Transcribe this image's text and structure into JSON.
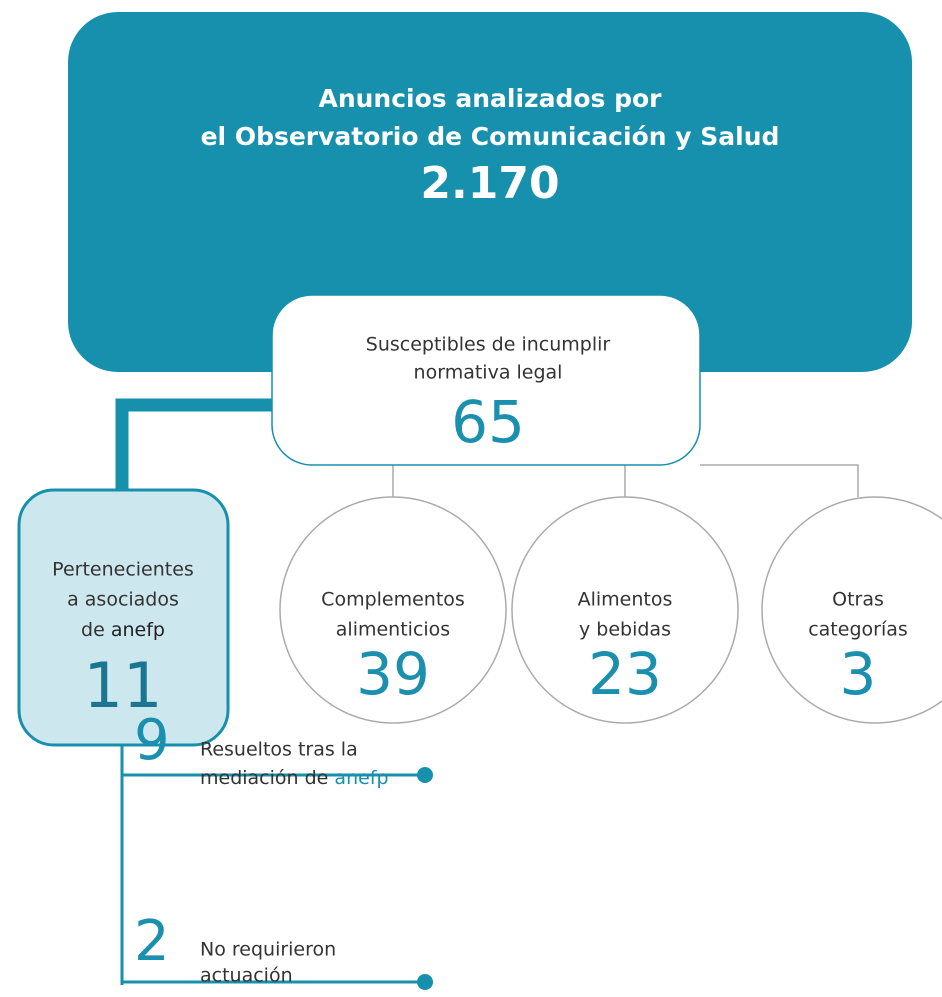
{
  "header": {
    "title_lines": [
      "Anuncios analizados por",
      "el Observatorio de Comunicación y Salud"
    ],
    "total": "2.170"
  },
  "susceptible": {
    "lines": [
      "Susceptibles de incumplir",
      "normativa legal"
    ],
    "value": "65"
  },
  "brand": "anefp",
  "associates": {
    "lines": [
      "Pertenecientes",
      "a asociados",
      "de"
    ],
    "value": "11"
  },
  "categories": [
    {
      "lines": [
        "Complementos",
        "alimenticios"
      ],
      "value": "39"
    },
    {
      "lines": [
        "Alimentos",
        "y bebidas"
      ],
      "value": "23"
    },
    {
      "lines": [
        "Otras",
        "categorías"
      ],
      "value": "3"
    }
  ],
  "outcomes": [
    {
      "value": "9",
      "lines": [
        "Resueltos tras la",
        "mediación de"
      ]
    },
    {
      "value": "2",
      "lines": [
        "No requirieron",
        "actuación"
      ]
    }
  ]
}
